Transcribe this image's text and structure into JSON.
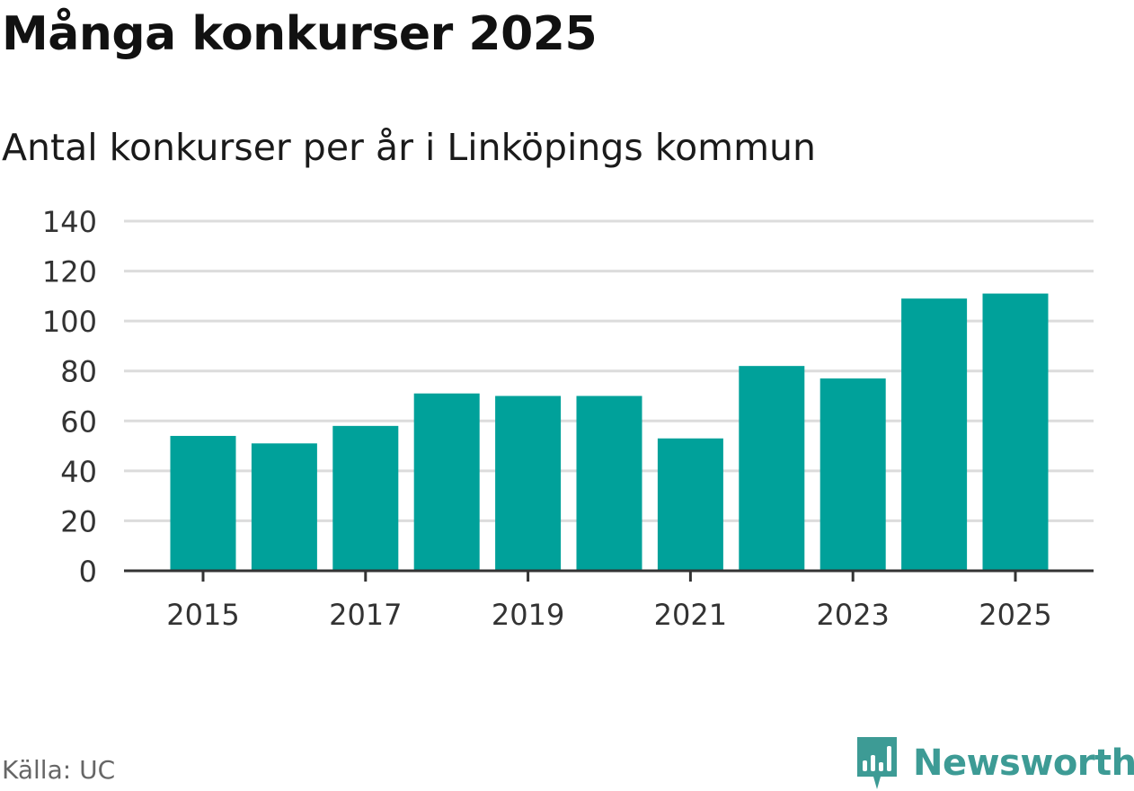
{
  "header": {
    "title": "Många konkurser 2025",
    "subtitle": "Antal konkurser per år i Linköpings kommun"
  },
  "footer": {
    "source": "Källa: UC",
    "brand": "Newsworthy",
    "brand_icon": "newsworthy-logo-icon"
  },
  "colors": {
    "bar": "#00a19a",
    "grid": "#dcdcdc",
    "axis": "#333333",
    "brand": "#3d9b95"
  },
  "chart_data": {
    "type": "bar",
    "title": "Många konkurser 2025",
    "subtitle": "Antal konkurser per år i Linköpings kommun",
    "categories": [
      "2015",
      "2016",
      "2017",
      "2018",
      "2019",
      "2020",
      "2021",
      "2022",
      "2023",
      "2024",
      "2025"
    ],
    "values": [
      54,
      51,
      58,
      71,
      70,
      70,
      53,
      82,
      77,
      109,
      111
    ],
    "xtick_labels": [
      "2015",
      "2017",
      "2019",
      "2021",
      "2023",
      "2025"
    ],
    "yticks": [
      0,
      20,
      40,
      60,
      80,
      100,
      120,
      140
    ],
    "ylim": [
      0,
      140
    ],
    "xlabel": "",
    "ylabel": "",
    "grid": true,
    "legend": "none"
  }
}
